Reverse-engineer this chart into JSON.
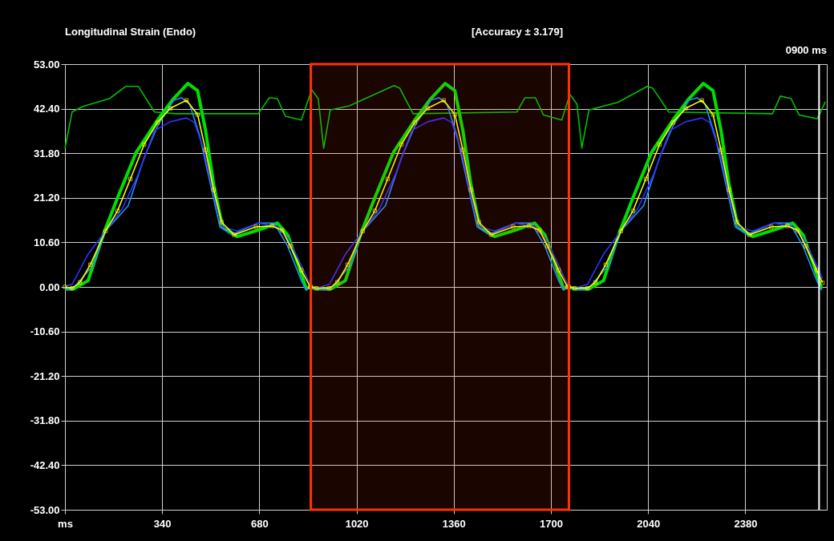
{
  "chart_data": {
    "type": "line",
    "title": "Longitudinal Strain (Endo)",
    "annotations": [
      "[Accuracy ± 3.179]",
      "0900 ms"
    ],
    "xlim": [
      0,
      2665
    ],
    "ylim": [
      -53,
      53
    ],
    "xticks": [
      {
        "value": 0,
        "label": "ms"
      },
      340,
      680,
      1020,
      1360,
      1700,
      2040,
      2380
    ],
    "yticks": [
      {
        "value": 53,
        "label": "53.00"
      },
      {
        "value": 42.4,
        "label": "42.40"
      },
      {
        "value": 31.8,
        "label": "31.80"
      },
      {
        "value": 21.2,
        "label": "21.20"
      },
      {
        "value": 10.6,
        "label": "10.60"
      },
      {
        "value": 0,
        "label": "0.00"
      },
      {
        "value": -10.6,
        "label": "-10.60"
      },
      {
        "value": -21.2,
        "label": "-21.20"
      },
      {
        "value": -31.8,
        "label": "-31.80"
      },
      {
        "value": -42.4,
        "label": "-42.40"
      },
      {
        "value": -53,
        "label": "-53.00"
      }
    ],
    "grid": true,
    "bands": [
      {
        "axis": "x",
        "from": 860,
        "to": 1763,
        "color": "#ff3300"
      }
    ],
    "ref_lines": [
      {
        "axis": "x",
        "value": 2638,
        "color": "#ffffff"
      }
    ],
    "series": [
      {
        "color": "#00c000",
        "x": [
          0,
          25,
          61,
          156,
          212,
          257,
          313,
          388,
          676,
          715,
          743,
          771,
          827,
          863,
          886,
          905,
          928,
          995,
          1151,
          1171,
          1218,
          1581,
          1609,
          1646,
          1674,
          1738,
          1766,
          1791,
          1808,
          1833,
          1934,
          2037,
          2056,
          2112,
          2475,
          2503,
          2540,
          2568,
          2632,
          2660
        ],
        "values": [
          33.0,
          41.6,
          42.9,
          44.8,
          47.7,
          47.7,
          41.6,
          41.2,
          41.2,
          45.0,
          44.8,
          40.6,
          39.7,
          46.9,
          44.8,
          33.0,
          42.1,
          43.1,
          47.9,
          47.3,
          41.2,
          41.6,
          45.0,
          45.0,
          40.9,
          39.7,
          45.8,
          43.5,
          33.0,
          42.1,
          43.9,
          47.7,
          47.3,
          41.6,
          41.2,
          45.4,
          44.8,
          40.9,
          40.0,
          44.0
        ]
      },
      {
        "color": "#00e000",
        "x": [
          0,
          30,
          81,
          137,
          184,
          249,
          324,
          380,
          430,
          464,
          492,
          520,
          551,
          603,
          676,
          743,
          779,
          816,
          844,
          858,
          860,
          880,
          930,
          981,
          1037,
          1084,
          1149,
          1224,
          1280,
          1330,
          1364,
          1392,
          1420,
          1451,
          1503,
          1576,
          1643,
          1679,
          1716,
          1744,
          1758,
          1763,
          1783,
          1833,
          1884,
          1940,
          1987,
          2052,
          2127,
          2183,
          2233,
          2267,
          2295,
          2323,
          2354,
          2406,
          2479,
          2546,
          2582,
          2619,
          2647
        ],
        "values": [
          -0.5,
          -0.5,
          1.5,
          13,
          21.2,
          32,
          39.7,
          44.8,
          48.4,
          46.7,
          37.2,
          24.4,
          14.3,
          12.0,
          13.5,
          15.2,
          12.4,
          5.3,
          -0.4,
          0,
          0,
          -0.5,
          -0.5,
          1.5,
          13,
          21.2,
          32,
          39.7,
          44.8,
          48.4,
          46.7,
          37.2,
          24.4,
          14.3,
          12.0,
          13.5,
          15.2,
          12.4,
          5.3,
          -0.4,
          0,
          0,
          -0.5,
          -0.5,
          1.5,
          13,
          21.2,
          32,
          39.7,
          44.8,
          48.4,
          46.7,
          37.2,
          24.4,
          14.3,
          12.0,
          13.5,
          15.2,
          12.4,
          5.3,
          -0.4
        ]
      },
      {
        "color": "#1e90ff",
        "x": [
          0,
          25,
          100,
          142,
          221,
          277,
          324,
          380,
          408,
          436,
          472,
          509,
          542,
          584,
          676,
          732,
          779,
          827,
          844,
          858,
          860,
          880,
          925,
          1000,
          1042,
          1121,
          1177,
          1224,
          1280,
          1308,
          1336,
          1372,
          1409,
          1442,
          1484,
          1576,
          1632,
          1679,
          1727,
          1744,
          1758,
          1763,
          1783,
          1828,
          1903,
          1945,
          2024,
          2080,
          2127,
          2183,
          2211,
          2239,
          2275,
          2312,
          2345,
          2387,
          2479,
          2535,
          2582,
          2630,
          2647
        ],
        "values": [
          -0.6,
          -0.7,
          5.3,
          13.3,
          19.3,
          30.7,
          38.3,
          44.4,
          45.0,
          43.5,
          35.8,
          24.4,
          14.3,
          12.4,
          15.2,
          15.2,
          9.7,
          1.5,
          -0.8,
          0,
          0,
          -0.5,
          -0.7,
          5.3,
          13.3,
          19.3,
          30.7,
          38.3,
          44.4,
          45.0,
          43.5,
          35.8,
          24.4,
          14.3,
          12.4,
          15.2,
          15.2,
          9.7,
          1.5,
          -0.8,
          0,
          0,
          -0.5,
          -0.7,
          5.3,
          13.3,
          19.3,
          30.7,
          38.3,
          44.4,
          45.0,
          43.5,
          35.8,
          24.4,
          14.3,
          12.4,
          15.2,
          15.2,
          9.7,
          1.5,
          -0.8
        ]
      },
      {
        "color": "#3030ff",
        "x": [
          0,
          25,
          81,
          142,
          201,
          257,
          313,
          369,
          425,
          453,
          486,
          520,
          551,
          603,
          676,
          743,
          779,
          816,
          855,
          860,
          880,
          925,
          981,
          1042,
          1101,
          1157,
          1213,
          1269,
          1325,
          1353,
          1386,
          1420,
          1451,
          1503,
          1576,
          1643,
          1679,
          1716,
          1755,
          1763,
          1783,
          1828,
          1884,
          1945,
          2004,
          2060,
          2116,
          2172,
          2228,
          2256,
          2289,
          2323,
          2354,
          2406,
          2479,
          2546,
          2582,
          2619,
          2650
        ],
        "values": [
          0.2,
          0.6,
          7.8,
          13.3,
          18.7,
          26.9,
          37.2,
          39.3,
          40.2,
          39.1,
          32.6,
          21.9,
          14.3,
          13.3,
          15.2,
          14.3,
          11.6,
          6.7,
          1.0,
          0,
          -0.3,
          0.6,
          7.8,
          13.3,
          18.7,
          26.9,
          37.2,
          39.3,
          40.2,
          39.1,
          32.6,
          21.9,
          14.3,
          13.3,
          15.2,
          14.3,
          11.6,
          6.7,
          1.0,
          0,
          -0.3,
          0.6,
          7.8,
          13.3,
          18.7,
          26.9,
          37.2,
          39.3,
          40.2,
          39.1,
          32.6,
          21.9,
          14.3,
          13.3,
          15.2,
          14.3,
          11.6,
          6.7,
          2.0
        ]
      },
      {
        "color": "#ffff00",
        "marker": "square",
        "x": [
          0,
          25,
          53,
          89,
          142,
          184,
          229,
          277,
          324,
          369,
          425,
          464,
          492,
          520,
          548,
          592,
          668,
          724,
          760,
          788,
          827,
          858,
          860,
          880,
          925,
          953,
          989,
          1042,
          1084,
          1129,
          1177,
          1224,
          1269,
          1325,
          1364,
          1392,
          1420,
          1448,
          1492,
          1568,
          1624,
          1660,
          1688,
          1727,
          1758,
          1763,
          1783,
          1828,
          1856,
          1892,
          1945,
          1987,
          2032,
          2080,
          2127,
          2172,
          2228,
          2267,
          2295,
          2323,
          2351,
          2395,
          2471,
          2527,
          2563,
          2591,
          2630,
          2650
        ],
        "values": [
          0,
          -0.3,
          1.1,
          5.3,
          13.3,
          18.1,
          25.7,
          33.9,
          39.1,
          42.5,
          44.4,
          41.0,
          32.6,
          23.1,
          15.4,
          12.4,
          14.3,
          14.5,
          13.5,
          9.7,
          4.0,
          0,
          0,
          -0.3,
          -0.3,
          1.1,
          5.3,
          13.3,
          18.1,
          25.7,
          33.9,
          39.1,
          42.5,
          44.4,
          41.0,
          32.6,
          23.1,
          15.4,
          12.4,
          14.3,
          14.5,
          13.5,
          9.7,
          4.0,
          0,
          0,
          -0.3,
          -0.3,
          1.1,
          5.3,
          13.3,
          18.1,
          25.7,
          33.9,
          39.1,
          42.5,
          44.4,
          41.0,
          32.6,
          23.1,
          15.4,
          12.4,
          14.3,
          14.5,
          13.5,
          9.7,
          4.0,
          1.0
        ]
      }
    ]
  }
}
